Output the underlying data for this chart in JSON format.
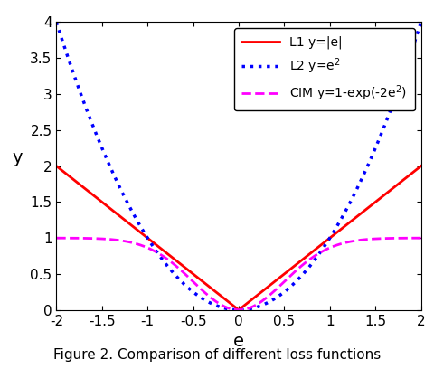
{
  "title": "Figure 2. Comparison of different loss functions",
  "xlabel": "e",
  "ylabel": "y",
  "xlim": [
    -2,
    2
  ],
  "ylim": [
    0,
    4
  ],
  "xticks": [
    -2,
    -1.5,
    -1,
    -0.5,
    0,
    0.5,
    1,
    1.5,
    2
  ],
  "yticks": [
    0,
    0.5,
    1,
    1.5,
    2,
    2.5,
    3,
    3.5,
    4
  ],
  "legend": [
    {
      "label": "L1 y=|e|",
      "color": "#ff0000",
      "linestyle": "solid",
      "linewidth": 2.0
    },
    {
      "label": "L2 y=e$^2$",
      "color": "#0000ff",
      "linestyle": "dotted",
      "linewidth": 2.5
    },
    {
      "label": "CIM y=1-exp(-2e$^2$)",
      "color": "#ff00ff",
      "linestyle": "dashed",
      "linewidth": 2.0
    }
  ],
  "n_points": 500,
  "background_color": "#ffffff",
  "fig_width": 4.8,
  "fig_height": 4.08,
  "dpi": 100
}
